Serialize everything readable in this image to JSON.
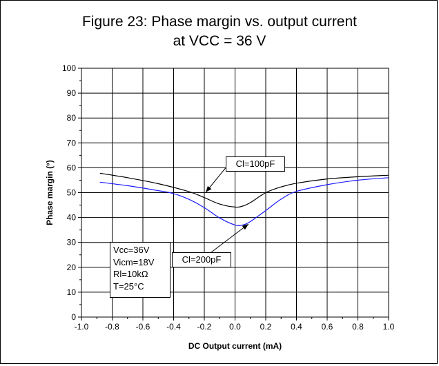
{
  "figure": {
    "title_line1": "Figure 23: Phase margin vs. output current",
    "title_line2": "at VCC = 36 V"
  },
  "chart_data": {
    "type": "line",
    "xlabel": "DC Output current (mA)",
    "ylabel": "Phase margin (°)",
    "xlim": [
      -1.0,
      1.0
    ],
    "ylim": [
      0,
      100
    ],
    "xticks": [
      -1.0,
      -0.8,
      -0.6,
      -0.4,
      -0.2,
      0.0,
      0.2,
      0.4,
      0.6,
      0.8,
      1.0
    ],
    "xtick_labels": [
      "-1.0",
      "-0.8",
      "-0.6",
      "-0.4",
      "-0.2",
      "0.0",
      "0.2",
      "0.4",
      "0.6",
      "0.8",
      "1.0"
    ],
    "yticks": [
      0,
      10,
      20,
      30,
      40,
      50,
      60,
      70,
      80,
      90,
      100
    ],
    "ytick_labels": [
      "0",
      "10",
      "20",
      "30",
      "40",
      "50",
      "60",
      "70",
      "80",
      "90",
      "100"
    ],
    "grid": true,
    "series": [
      {
        "color": "#000000",
        "x": [
          -0.88,
          -0.7,
          -0.5,
          -0.3,
          -0.2,
          -0.1,
          0.0,
          0.05,
          0.1,
          0.2,
          0.3,
          0.4,
          0.6,
          0.8,
          1.0
        ],
        "y": [
          57.8,
          56.0,
          53.6,
          50.4,
          48.0,
          45.4,
          44.2,
          44.6,
          46.0,
          50.0,
          52.3,
          53.8,
          55.5,
          56.4,
          57.0
        ]
      },
      {
        "color": "#1a1aff",
        "x": [
          -0.88,
          -0.7,
          -0.5,
          -0.4,
          -0.3,
          -0.2,
          -0.1,
          0.0,
          0.05,
          0.1,
          0.2,
          0.3,
          0.4,
          0.6,
          0.8,
          1.0
        ],
        "y": [
          54.2,
          52.8,
          50.8,
          49.6,
          47.3,
          44.0,
          39.8,
          37.0,
          37.0,
          38.4,
          42.8,
          47.4,
          50.5,
          53.2,
          55.0,
          56.0
        ]
      }
    ],
    "annotations": {
      "conditions": [
        "Vcc=36V",
        "Vicm=18V",
        "Rl=10kΩ",
        "T=25°C"
      ],
      "cl100": "Cl=100pF",
      "cl200": "Cl=200pF"
    }
  }
}
